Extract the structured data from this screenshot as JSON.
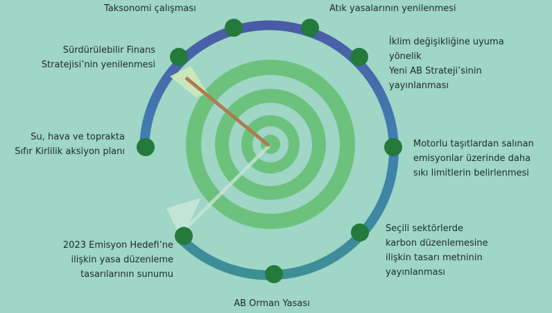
{
  "nodes": [
    {
      "lines": [
        "Taksonomi çalışması"
      ]
    },
    {
      "lines": [
        "Atık yasalarının yenilenmesi"
      ]
    },
    {
      "lines": [
        "Sürdürülebilir Finans",
        "Stratejisi’nin yenilenmesi"
      ]
    },
    {
      "lines": [
        "İklim değişikliğine uyuma",
        "yönelik",
        "Yeni AB Strateji’sinin",
        "yayınlanması"
      ]
    },
    {
      "lines": [
        "Su, hava ve toprakta",
        "Sıfır Kirlilik aksiyon planı"
      ]
    },
    {
      "lines": [
        "Motorlu taşıtlardan salınan",
        "emisyonlar üzerinde daha",
        "sıkı limitlerin belirlenmesi"
      ]
    },
    {
      "lines": [
        "Seçili sektörlerde",
        "karbon düzenlemesine",
        "ilişkin tasarı metninin",
        "yayınlanması"
      ]
    },
    {
      "lines": [
        "2023 Emisyon Hedefi’ne",
        "ilişkin yasa düzenleme",
        "tasarılarının sunumu"
      ]
    },
    {
      "lines": [
        "AB Orman Yasası"
      ]
    }
  ]
}
